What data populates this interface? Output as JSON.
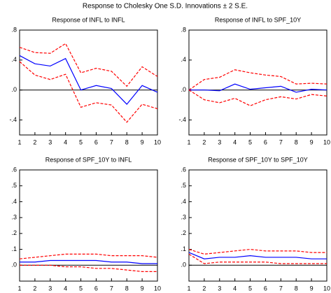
{
  "title": "Response to Cholesky One S.D. Innovations ± 2 S.E.",
  "chart_data": [
    {
      "type": "line",
      "title": "Response of INFL to INFL",
      "x": [
        1,
        2,
        3,
        4,
        5,
        6,
        7,
        8,
        9,
        10
      ],
      "xlim": [
        1,
        10
      ],
      "xticks": [
        1,
        2,
        3,
        4,
        5,
        6,
        7,
        8,
        9,
        10
      ],
      "ylim": [
        -0.6,
        0.8
      ],
      "yticks": [
        {
          "value": 0.8,
          "label": ".8"
        },
        {
          "value": 0.4,
          "label": ".4"
        },
        {
          "value": 0,
          "label": ".0"
        },
        {
          "value": -0.4,
          "label": "-.4"
        }
      ],
      "reference_line": 0,
      "series": [
        {
          "color": "#ff0000",
          "dashed": true,
          "values": [
            0.57,
            0.5,
            0.49,
            0.62,
            0.23,
            0.29,
            0.25,
            0.05,
            0.31,
            0.18
          ]
        },
        {
          "color": "#0000ff",
          "dashed": false,
          "values": [
            0.46,
            0.35,
            0.32,
            0.42,
            0.0,
            0.06,
            0.02,
            -0.19,
            0.06,
            -0.03
          ]
        },
        {
          "color": "#ff0000",
          "dashed": true,
          "values": [
            0.38,
            0.2,
            0.14,
            0.21,
            -0.23,
            -0.17,
            -0.2,
            -0.43,
            -0.19,
            -0.25
          ]
        }
      ]
    },
    {
      "type": "line",
      "title": "Response of INFL to SPF_10Y",
      "x": [
        1,
        2,
        3,
        4,
        5,
        6,
        7,
        8,
        9,
        10
      ],
      "xlim": [
        1,
        10
      ],
      "xticks": [
        1,
        2,
        3,
        4,
        5,
        6,
        7,
        8,
        9,
        10
      ],
      "ylim": [
        -0.6,
        0.8
      ],
      "yticks": [
        {
          "value": 0.8,
          "label": ".8"
        },
        {
          "value": 0.4,
          "label": ".4"
        },
        {
          "value": 0,
          "label": ".0"
        },
        {
          "value": -0.4,
          "label": "-.4"
        }
      ],
      "reference_line": 0,
      "series": [
        {
          "color": "#ff0000",
          "dashed": true,
          "values": [
            0.0,
            0.14,
            0.17,
            0.27,
            0.23,
            0.2,
            0.18,
            0.08,
            0.09,
            0.08
          ]
        },
        {
          "color": "#0000ff",
          "dashed": false,
          "values": [
            0.0,
            0.0,
            -0.01,
            0.08,
            0.01,
            0.03,
            0.05,
            -0.03,
            0.01,
            0.0
          ]
        },
        {
          "color": "#ff0000",
          "dashed": true,
          "values": [
            0.0,
            -0.13,
            -0.17,
            -0.11,
            -0.21,
            -0.13,
            -0.09,
            -0.12,
            -0.06,
            -0.08
          ]
        }
      ]
    },
    {
      "type": "line",
      "title": "Response of SPF_10Y to INFL",
      "x": [
        1,
        2,
        3,
        4,
        5,
        6,
        7,
        8,
        9,
        10
      ],
      "xlim": [
        1,
        10
      ],
      "xticks": [
        1,
        2,
        3,
        4,
        5,
        6,
        7,
        8,
        9,
        10
      ],
      "ylim": [
        -0.1,
        0.6
      ],
      "yticks": [
        {
          "value": 0.6,
          "label": ".6"
        },
        {
          "value": 0.5,
          "label": ".5"
        },
        {
          "value": 0.4,
          "label": ".4"
        },
        {
          "value": 0.3,
          "label": ".3"
        },
        {
          "value": 0.2,
          "label": ".2"
        },
        {
          "value": 0.1,
          "label": ".1"
        },
        {
          "value": 0,
          "label": ".0"
        }
      ],
      "reference_line": 0,
      "series": [
        {
          "color": "#ff0000",
          "dashed": true,
          "values": [
            0.04,
            0.05,
            0.06,
            0.07,
            0.07,
            0.07,
            0.06,
            0.06,
            0.06,
            0.05
          ]
        },
        {
          "color": "#0000ff",
          "dashed": false,
          "values": [
            0.02,
            0.02,
            0.03,
            0.03,
            0.03,
            0.03,
            0.02,
            0.02,
            0.01,
            0.01
          ]
        },
        {
          "color": "#ff0000",
          "dashed": true,
          "values": [
            0.0,
            0.0,
            0.0,
            -0.01,
            -0.01,
            -0.02,
            -0.02,
            -0.03,
            -0.04,
            -0.04
          ]
        }
      ]
    },
    {
      "type": "line",
      "title": "Response of SPF_10Y to SPF_10Y",
      "x": [
        1,
        2,
        3,
        4,
        5,
        6,
        7,
        8,
        9,
        10
      ],
      "xlim": [
        1,
        10
      ],
      "xticks": [
        1,
        2,
        3,
        4,
        5,
        6,
        7,
        8,
        9,
        10
      ],
      "ylim": [
        -0.1,
        0.6
      ],
      "yticks": [
        {
          "value": 0.6,
          "label": ".6"
        },
        {
          "value": 0.5,
          "label": ".5"
        },
        {
          "value": 0.4,
          "label": ".4"
        },
        {
          "value": 0.3,
          "label": ".3"
        },
        {
          "value": 0.2,
          "label": ".2"
        },
        {
          "value": 0.1,
          "label": ".1"
        },
        {
          "value": 0,
          "label": ".0"
        }
      ],
      "reference_line": 0,
      "series": [
        {
          "color": "#ff0000",
          "dashed": true,
          "values": [
            0.1,
            0.07,
            0.08,
            0.09,
            0.1,
            0.09,
            0.09,
            0.09,
            0.08,
            0.08
          ]
        },
        {
          "color": "#0000ff",
          "dashed": false,
          "values": [
            0.08,
            0.04,
            0.05,
            0.05,
            0.06,
            0.05,
            0.05,
            0.05,
            0.04,
            0.04
          ]
        },
        {
          "color": "#ff0000",
          "dashed": true,
          "values": [
            0.07,
            0.01,
            0.02,
            0.02,
            0.02,
            0.02,
            0.01,
            0.01,
            0.01,
            0.01
          ]
        }
      ]
    }
  ]
}
